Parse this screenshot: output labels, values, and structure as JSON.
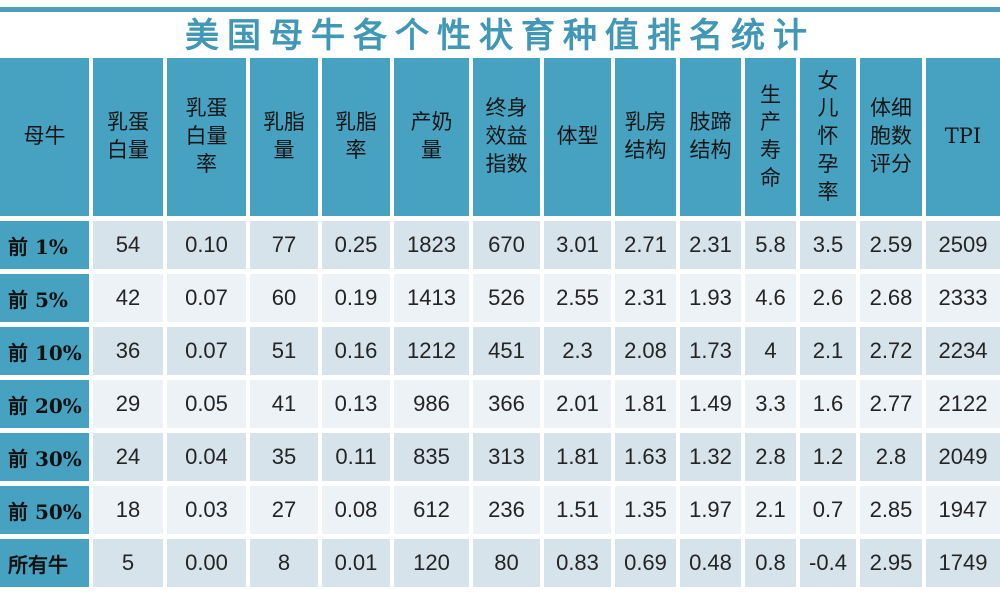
{
  "title": "美国母牛各个性状育种值排名统计",
  "colors": {
    "accent_teal": "#47a2c1",
    "top_bar": "#4f9fbb",
    "title_text": "#4197b6",
    "row_stripe_dark": "#d6e3eb",
    "row_stripe_light": "#edf2f6"
  },
  "chart_data": {
    "type": "table",
    "title": "美国母牛各个性状育种值排名统计",
    "columns": [
      "母牛",
      "乳蛋白量",
      "乳蛋白量率",
      "乳脂量",
      "乳脂率",
      "产奶量",
      "终身效益指数",
      "体型",
      "乳房结构",
      "肢蹄结构",
      "生产寿命",
      "女儿怀孕率",
      "体细胞数评分",
      "TPI"
    ],
    "header_lines": [
      [
        "母牛"
      ],
      [
        "乳蛋",
        "白量"
      ],
      [
        "乳蛋",
        "白量",
        "率"
      ],
      [
        "乳脂",
        "量"
      ],
      [
        "乳脂",
        "率"
      ],
      [
        "产奶",
        "量"
      ],
      [
        "终身",
        "效益",
        "指数"
      ],
      [
        "体型"
      ],
      [
        "乳房",
        "结构"
      ],
      [
        "肢蹄",
        "结构"
      ],
      [
        "生",
        "产",
        "寿",
        "命"
      ],
      [
        "女",
        "儿",
        "怀",
        "孕",
        "率"
      ],
      [
        "体细",
        "胞数",
        "评分"
      ],
      [
        "TPI"
      ]
    ],
    "rows": [
      {
        "label": "前 1%",
        "values": [
          "54",
          "0.10",
          "77",
          "0.25",
          "1823",
          "670",
          "3.01",
          "2.71",
          "2.31",
          "5.8",
          "3.5",
          "2.59",
          "2509"
        ]
      },
      {
        "label": "前 5%",
        "values": [
          "42",
          "0.07",
          "60",
          "0.19",
          "1413",
          "526",
          "2.55",
          "2.31",
          "1.93",
          "4.6",
          "2.6",
          "2.68",
          "2333"
        ]
      },
      {
        "label": "前 10%",
        "values": [
          "36",
          "0.07",
          "51",
          "0.16",
          "1212",
          "451",
          "2.3",
          "2.08",
          "1.73",
          "4",
          "2.1",
          "2.72",
          "2234"
        ]
      },
      {
        "label": "前 20%",
        "values": [
          "29",
          "0.05",
          "41",
          "0.13",
          "986",
          "366",
          "2.01",
          "1.81",
          "1.49",
          "3.3",
          "1.6",
          "2.77",
          "2122"
        ]
      },
      {
        "label": "前 30%",
        "values": [
          "24",
          "0.04",
          "35",
          "0.11",
          "835",
          "313",
          "1.81",
          "1.63",
          "1.32",
          "2.8",
          "1.2",
          "2.8",
          "2049"
        ]
      },
      {
        "label": "前 50%",
        "values": [
          "18",
          "0.03",
          "27",
          "0.08",
          "612",
          "236",
          "1.51",
          "1.35",
          "1.97",
          "2.1",
          "0.7",
          "2.85",
          "1947"
        ]
      },
      {
        "label": "所有牛",
        "values": [
          "5",
          "0.00",
          "8",
          "0.01",
          "120",
          "80",
          "0.83",
          "0.69",
          "0.48",
          "0.8",
          "-0.4",
          "2.95",
          "1749"
        ]
      }
    ]
  }
}
